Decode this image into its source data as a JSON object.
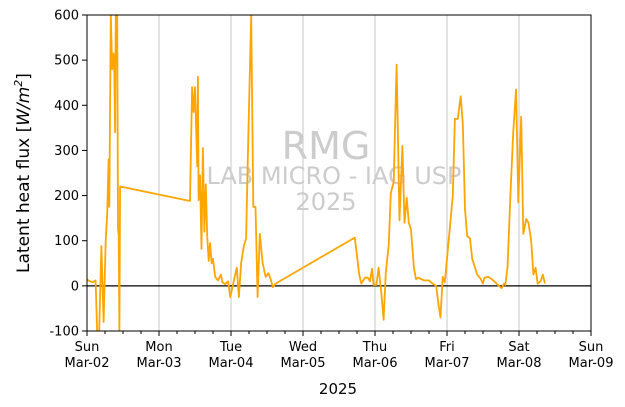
{
  "chart_data": {
    "type": "line",
    "title": "",
    "ylabel": "Latent heat flux [W/m²]",
    "ylabel_main": "Latent heat flux [",
    "ylabel_unit": "W/m",
    "ylabel_sup": "2",
    "ylabel_close": "]",
    "xlabel": "2025",
    "ylim": [
      -100,
      600
    ],
    "xlim_days": [
      0,
      7
    ],
    "yticks": [
      -100,
      0,
      100,
      200,
      300,
      400,
      500,
      600
    ],
    "xticks": [
      {
        "day": 0,
        "weekday": "Sun",
        "date": "Mar-02"
      },
      {
        "day": 1,
        "weekday": "Mon",
        "date": "Mar-03"
      },
      {
        "day": 2,
        "weekday": "Tue",
        "date": "Mar-04"
      },
      {
        "day": 3,
        "weekday": "Wed",
        "date": "Mar-05"
      },
      {
        "day": 4,
        "weekday": "Thu",
        "date": "Mar-06"
      },
      {
        "day": 5,
        "weekday": "Fri",
        "date": "Mar-07"
      },
      {
        "day": 6,
        "weekday": "Sat",
        "date": "Mar-08"
      },
      {
        "day": 7,
        "weekday": "Sun",
        "date": "Mar-09"
      }
    ],
    "grid": "vertical",
    "zero_line": true,
    "series": [
      {
        "color": "#ffa500",
        "points": [
          [
            0.0,
            14
          ],
          [
            0.04,
            10
          ],
          [
            0.08,
            8
          ],
          [
            0.12,
            12
          ],
          [
            0.14,
            -100
          ],
          [
            0.17,
            -100
          ],
          [
            0.2,
            88
          ],
          [
            0.23,
            -80
          ],
          [
            0.26,
            100
          ],
          [
            0.28,
            160
          ],
          [
            0.3,
            280
          ],
          [
            0.31,
            175
          ],
          [
            0.33,
            600
          ],
          [
            0.35,
            480
          ],
          [
            0.37,
            515
          ],
          [
            0.38,
            470
          ],
          [
            0.39,
            340
          ],
          [
            0.4,
            600
          ],
          [
            0.42,
            600
          ],
          [
            0.43,
            130
          ],
          [
            0.44,
            110
          ],
          [
            0.45,
            -100
          ],
          [
            0.46,
            220
          ],
          [
            1.43,
            188
          ],
          [
            1.46,
            440
          ],
          [
            1.48,
            385
          ],
          [
            1.5,
            440
          ],
          [
            1.53,
            265
          ],
          [
            1.54,
            463
          ],
          [
            1.55,
            190
          ],
          [
            1.57,
            245
          ],
          [
            1.59,
            82
          ],
          [
            1.61,
            305
          ],
          [
            1.63,
            120
          ],
          [
            1.65,
            225
          ],
          [
            1.67,
            110
          ],
          [
            1.69,
            55
          ],
          [
            1.71,
            95
          ],
          [
            1.73,
            50
          ],
          [
            1.75,
            60
          ],
          [
            1.78,
            20
          ],
          [
            1.82,
            12
          ],
          [
            1.86,
            25
          ],
          [
            1.88,
            8
          ],
          [
            1.92,
            4
          ],
          [
            1.96,
            10
          ],
          [
            1.99,
            -25
          ],
          [
            2.03,
            5
          ],
          [
            2.08,
            40
          ],
          [
            2.11,
            -25
          ],
          [
            2.14,
            50
          ],
          [
            2.18,
            90
          ],
          [
            2.21,
            105
          ],
          [
            2.24,
            330
          ],
          [
            2.28,
            600
          ],
          [
            2.31,
            175
          ],
          [
            2.34,
            175
          ],
          [
            2.37,
            -25
          ],
          [
            2.4,
            115
          ],
          [
            2.44,
            50
          ],
          [
            2.48,
            20
          ],
          [
            2.52,
            28
          ],
          [
            2.55,
            15
          ],
          [
            2.58,
            -3
          ],
          [
            2.62,
            5
          ],
          [
            3.72,
            107
          ],
          [
            3.78,
            25
          ],
          [
            3.81,
            5
          ],
          [
            3.86,
            18
          ],
          [
            3.9,
            18
          ],
          [
            3.93,
            10
          ],
          [
            3.96,
            38
          ],
          [
            3.98,
            2
          ],
          [
            4.02,
            2
          ],
          [
            4.05,
            40
          ],
          [
            4.09,
            -20
          ],
          [
            4.12,
            -75
          ],
          [
            4.15,
            30
          ],
          [
            4.19,
            90
          ],
          [
            4.22,
            205
          ],
          [
            4.26,
            230
          ],
          [
            4.3,
            490
          ],
          [
            4.34,
            145
          ],
          [
            4.38,
            310
          ],
          [
            4.41,
            140
          ],
          [
            4.44,
            195
          ],
          [
            4.47,
            140
          ],
          [
            4.5,
            125
          ],
          [
            4.54,
            40
          ],
          [
            4.57,
            15
          ],
          [
            4.6,
            18
          ],
          [
            4.64,
            15
          ],
          [
            4.68,
            12
          ],
          [
            4.75,
            12
          ],
          [
            4.8,
            5
          ],
          [
            4.85,
            0
          ],
          [
            4.88,
            -40
          ],
          [
            4.91,
            -70
          ],
          [
            4.94,
            20
          ],
          [
            4.97,
            8
          ],
          [
            5.0,
            60
          ],
          [
            5.04,
            130
          ],
          [
            5.08,
            200
          ],
          [
            5.11,
            370
          ],
          [
            5.15,
            370
          ],
          [
            5.19,
            420
          ],
          [
            5.22,
            360
          ],
          [
            5.25,
            170
          ],
          [
            5.28,
            110
          ],
          [
            5.32,
            105
          ],
          [
            5.35,
            60
          ],
          [
            5.39,
            40
          ],
          [
            5.42,
            25
          ],
          [
            5.47,
            15
          ],
          [
            5.5,
            5
          ],
          [
            5.52,
            18
          ],
          [
            5.57,
            20
          ],
          [
            5.62,
            15
          ],
          [
            5.67,
            8
          ],
          [
            5.72,
            0
          ],
          [
            5.76,
            -5
          ],
          [
            5.79,
            5
          ],
          [
            5.81,
            2
          ],
          [
            5.84,
            40
          ],
          [
            5.88,
            200
          ],
          [
            5.92,
            340
          ],
          [
            5.96,
            435
          ],
          [
            5.99,
            185
          ],
          [
            6.03,
            375
          ],
          [
            6.06,
            115
          ],
          [
            6.1,
            148
          ],
          [
            6.13,
            140
          ],
          [
            6.17,
            100
          ],
          [
            6.2,
            25
          ],
          [
            6.23,
            40
          ],
          [
            6.26,
            5
          ],
          [
            6.3,
            10
          ],
          [
            6.33,
            25
          ],
          [
            6.36,
            5
          ]
        ]
      }
    ]
  },
  "watermark": {
    "line1": "RMG",
    "line2": "LAB MICRO - IAG USP",
    "line3": "2025"
  }
}
